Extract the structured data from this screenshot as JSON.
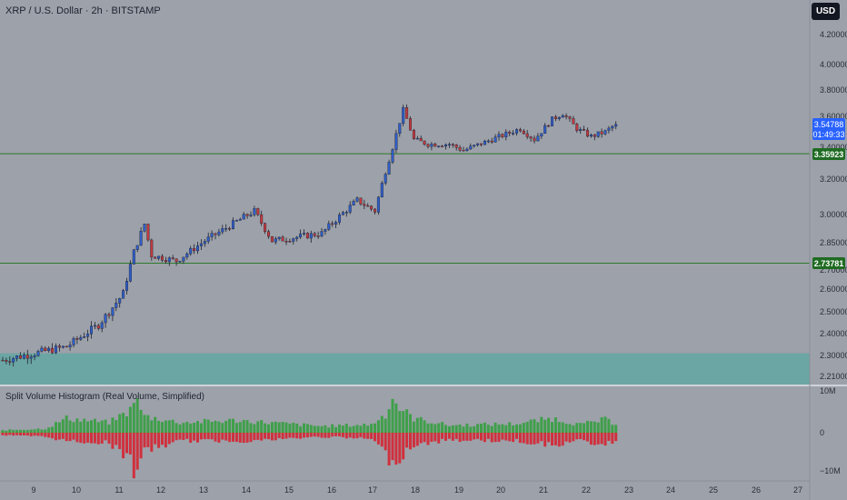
{
  "header": {
    "symbol": "XRP / U.S. Dollar · 2h · BITSTAMP",
    "currency_button": "USD"
  },
  "indicator": {
    "title": "Split Volume Histogram (Real Volume, Simplified)"
  },
  "price_axis_labels": [
    "4.20000",
    "4.00000",
    "3.80000",
    "3.60000",
    "3.40000",
    "3.20000",
    "3.00000",
    "2.85000",
    "2.70000",
    "2.60000",
    "2.50000",
    "2.40000",
    "2.30000",
    "2.21000"
  ],
  "volume_axis_labels": [
    "10M",
    "0",
    "−10M"
  ],
  "time_axis_labels": [
    "9",
    "10",
    "11",
    "12",
    "13",
    "14",
    "15",
    "16",
    "17",
    "18",
    "19",
    "20",
    "21",
    "22",
    "23",
    "24",
    "25",
    "26",
    "27"
  ],
  "badges": {
    "last_price": "3.54788",
    "countdown": "01:49:33",
    "upper_line": "3.35923",
    "lower_line": "2.73781"
  },
  "colors": {
    "background": "#9da1a9",
    "candle_up": "#2f5ec9",
    "candle_down": "#c23a3f",
    "volume_up": "#3f9f4a",
    "volume_down": "#d0303d",
    "hline": "#2d7a2d",
    "zone": "#5fa8a3",
    "price_badge": "#2962ff"
  },
  "chart_data": {
    "type": "candlestick",
    "title": "XRP / U.S. Dollar · 2h · BITSTAMP",
    "price_range": [
      2.18,
      4.3
    ],
    "horizontal_lines": [
      3.35923,
      2.73781
    ],
    "support_zone": [
      2.18,
      2.31
    ],
    "last_price": 3.54788,
    "price_key_points": [
      [
        0,
        2.28
      ],
      [
        18,
        2.34
      ],
      [
        27,
        2.44
      ],
      [
        34,
        2.58
      ],
      [
        37,
        2.8
      ],
      [
        40,
        2.95
      ],
      [
        42,
        2.78
      ],
      [
        49,
        2.75
      ],
      [
        57,
        2.86
      ],
      [
        71,
        3.02
      ],
      [
        76,
        2.86
      ],
      [
        90,
        2.9
      ],
      [
        100,
        3.08
      ],
      [
        105,
        3.02
      ],
      [
        110,
        3.4
      ],
      [
        113,
        3.65
      ],
      [
        116,
        3.45
      ],
      [
        120,
        3.42
      ],
      [
        126,
        3.42
      ],
      [
        130,
        3.38
      ],
      [
        138,
        3.45
      ],
      [
        146,
        3.52
      ],
      [
        150,
        3.45
      ],
      [
        155,
        3.58
      ],
      [
        158,
        3.62
      ],
      [
        162,
        3.52
      ],
      [
        166,
        3.47
      ],
      [
        170,
        3.5
      ],
      [
        173,
        3.55
      ]
    ],
    "volume_range_millions": [
      -10,
      10
    ],
    "volume_key_points_millions": [
      [
        0,
        0.6,
        -0.6
      ],
      [
        12,
        1.0,
        -1.0
      ],
      [
        18,
        3.5,
        -2.0
      ],
      [
        30,
        2.5,
        -2.5
      ],
      [
        36,
        5.5,
        -6.5
      ],
      [
        37,
        9.0,
        -9.5
      ],
      [
        40,
        4.0,
        -4.5
      ],
      [
        50,
        2.5,
        -2.0
      ],
      [
        66,
        3.0,
        -2.0
      ],
      [
        70,
        2.8,
        -2.0
      ],
      [
        90,
        1.6,
        -1.0
      ],
      [
        104,
        2.0,
        -1.5
      ],
      [
        108,
        4.5,
        -5.0
      ],
      [
        110,
        8.5,
        -8.0
      ],
      [
        112,
        6.0,
        -6.0
      ],
      [
        116,
        3.5,
        -3.0
      ],
      [
        126,
        1.8,
        -1.8
      ],
      [
        145,
        2.2,
        -2.0
      ],
      [
        155,
        3.5,
        -3.0
      ],
      [
        163,
        2.0,
        -2.0
      ],
      [
        170,
        3.2,
        -3.0
      ],
      [
        173,
        2.2,
        -1.8
      ]
    ],
    "x_labels": [
      "9",
      "10",
      "11",
      "12",
      "13",
      "14",
      "15",
      "16",
      "17",
      "18",
      "19",
      "20",
      "21",
      "22",
      "23",
      "24",
      "25",
      "26",
      "27"
    ]
  }
}
